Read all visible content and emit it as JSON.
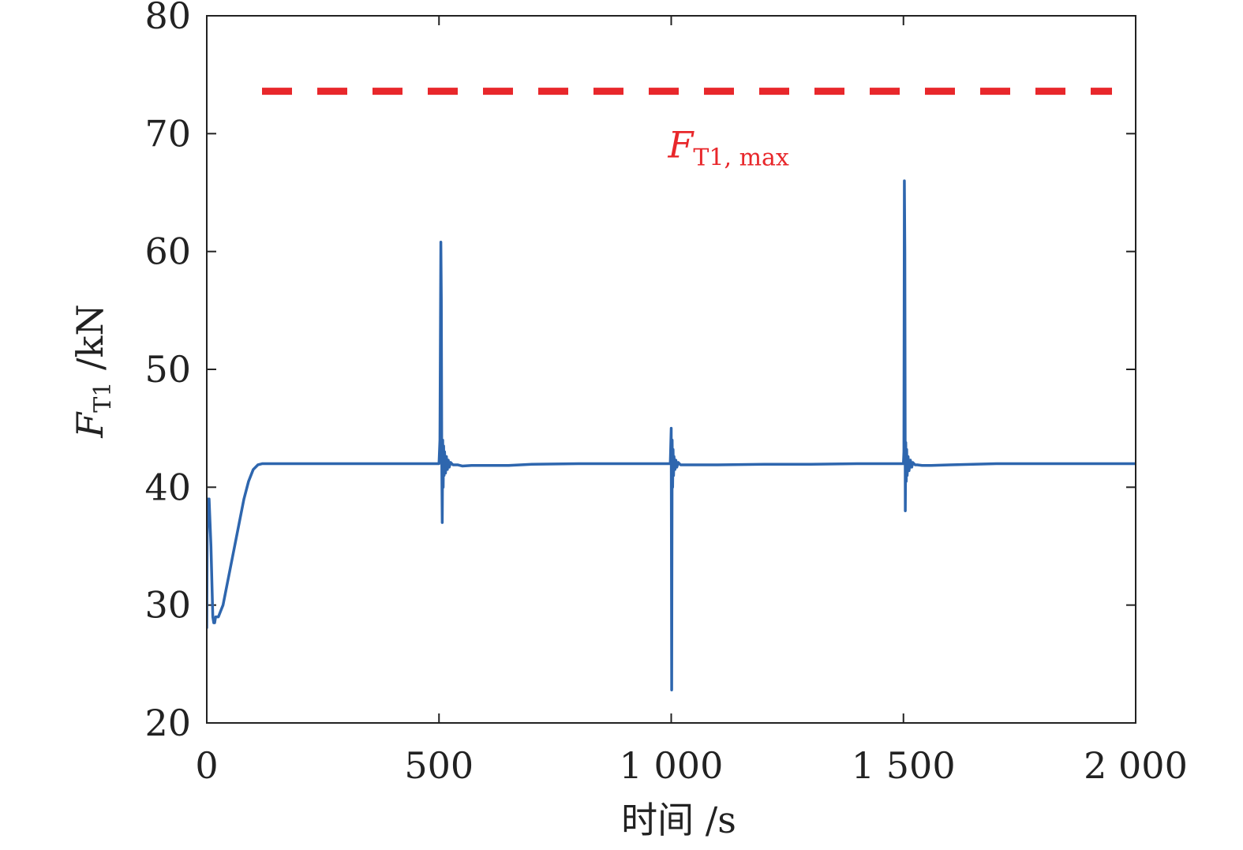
{
  "colors": {
    "series": "#2e66ae",
    "threshold": "#e8272b",
    "axis": "#222222"
  },
  "chart_data": {
    "type": "line",
    "title": "",
    "xlabel": "时间 /s",
    "ylabel": {
      "main": "F",
      "sub": "T1",
      "unit": " /kN"
    },
    "xlim": [
      0,
      2000
    ],
    "ylim": [
      20,
      80
    ],
    "x_ticks": [
      {
        "value": 0,
        "label": "0"
      },
      {
        "value": 500,
        "label": "500"
      },
      {
        "value": 1000,
        "label": "1 000"
      },
      {
        "value": 1500,
        "label": "1 500"
      },
      {
        "value": 2000,
        "label": "2 000"
      }
    ],
    "y_ticks": [
      {
        "value": 20,
        "label": "20"
      },
      {
        "value": 30,
        "label": "30"
      },
      {
        "value": 40,
        "label": "40"
      },
      {
        "value": 50,
        "label": "50"
      },
      {
        "value": 60,
        "label": "60"
      },
      {
        "value": 70,
        "label": "70"
      },
      {
        "value": 80,
        "label": "80"
      }
    ],
    "grid": false,
    "threshold": {
      "value": 73.6,
      "style": "dashed",
      "label": {
        "main": "F",
        "sub": "T1, max"
      },
      "label_x": 1000,
      "label_y": 68.5
    },
    "series": [
      {
        "x": [
          0,
          1,
          3,
          5,
          7,
          9,
          11,
          13,
          15,
          17,
          19,
          20,
          22,
          25,
          30,
          35,
          40,
          45,
          50,
          55,
          60,
          70,
          80,
          90,
          100,
          110,
          120,
          130,
          140,
          145,
          150,
          200,
          300,
          400,
          495,
          500,
          502,
          504,
          505,
          506,
          507,
          508,
          509,
          510,
          511,
          512,
          514,
          516,
          518,
          520,
          522,
          525,
          530,
          535,
          540,
          550,
          570,
          600,
          650,
          700,
          800,
          900,
          995,
          998,
          999,
          1000,
          1001,
          1002,
          1003,
          1004,
          1005,
          1006,
          1008,
          1010,
          1012,
          1015,
          1020,
          1030,
          1050,
          1100,
          1200,
          1300,
          1400,
          1495,
          1498,
          1500,
          1501,
          1502,
          1503,
          1504,
          1505,
          1506,
          1507,
          1508,
          1510,
          1512,
          1515,
          1518,
          1520,
          1525,
          1530,
          1540,
          1560,
          1600,
          1700,
          1800,
          1900,
          2000
        ],
        "y": [
          28,
          36,
          39,
          39,
          37,
          35,
          32,
          29,
          28.5,
          28.5,
          29,
          29,
          29,
          29,
          29.5,
          30,
          31,
          32,
          33,
          34,
          35,
          37,
          39,
          40.5,
          41.5,
          41.9,
          42,
          42,
          42,
          42,
          42,
          42,
          42,
          42,
          42,
          42,
          44,
          60.8,
          56,
          42,
          37,
          44,
          40,
          43.5,
          41,
          43,
          41.2,
          42.6,
          41.5,
          42.3,
          41.7,
          42.1,
          41.9,
          41.9,
          41.9,
          41.8,
          41.85,
          41.85,
          41.85,
          41.95,
          42,
          42,
          42,
          42,
          43.5,
          45,
          22.8,
          44,
          40,
          43.2,
          41,
          42.6,
          41.5,
          42.3,
          41.7,
          42.1,
          41.9,
          41.9,
          41.9,
          41.9,
          41.95,
          41.95,
          42,
          42,
          42,
          42,
          43,
          66,
          60,
          38,
          43.8,
          40.5,
          43.2,
          41,
          42.6,
          41.4,
          42.3,
          41.7,
          42.1,
          41.9,
          41.9,
          41.85,
          41.85,
          41.9,
          42,
          42,
          42,
          42
        ]
      }
    ]
  }
}
